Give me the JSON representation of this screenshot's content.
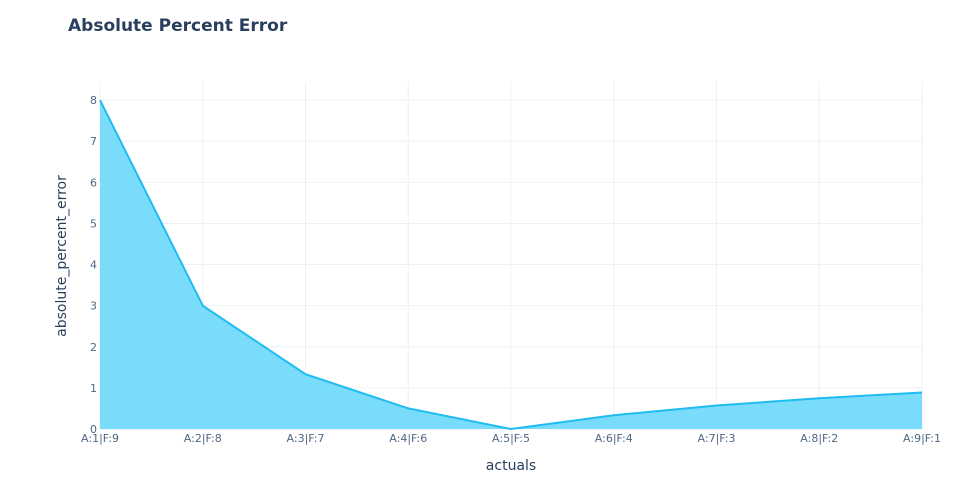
{
  "chart_data": {
    "type": "area",
    "title": "Absolute Percent Error",
    "xlabel": "actuals",
    "ylabel": "absolute_percent_error",
    "categories": [
      "A:1|F:9",
      "A:2|F:8",
      "A:3|F:7",
      "A:4|F:6",
      "A:5|F:5",
      "A:6|F:4",
      "A:7|F:3",
      "A:8|F:2",
      "A:9|F:1"
    ],
    "values": [
      8,
      3,
      1.333,
      0.5,
      0,
      0.333,
      0.571,
      0.75,
      0.889
    ],
    "yticks": [
      0,
      1,
      2,
      3,
      4,
      5,
      6,
      7,
      8
    ],
    "ylim": [
      0,
      8.1
    ],
    "grid": true,
    "colors": {
      "line": "#1ebcf0",
      "fill": "#7adcfb",
      "grid": "#ebf0f8",
      "text": "#2a3f5f"
    }
  }
}
